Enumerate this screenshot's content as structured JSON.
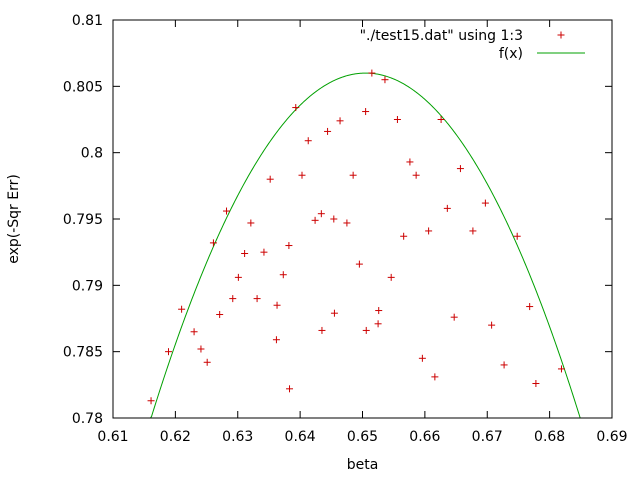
{
  "chart_data": {
    "type": "scatter",
    "title": "",
    "xlabel": "beta",
    "ylabel": "exp(-Sqr Err)",
    "xlim": [
      0.61,
      0.69
    ],
    "ylim": [
      0.78,
      0.81
    ],
    "xticks": [
      0.61,
      0.62,
      0.63,
      0.64,
      0.65,
      0.66,
      0.67,
      0.68,
      0.69
    ],
    "yticks": [
      0.78,
      0.785,
      0.79,
      0.795,
      0.8,
      0.805,
      0.81
    ],
    "xtick_labels": [
      "0.61",
      "0.62",
      "0.63",
      "0.64",
      "0.65",
      "0.66",
      "0.67",
      "0.68",
      "0.69"
    ],
    "ytick_labels": [
      "0.78",
      "0.785",
      "0.79",
      "0.795",
      "0.8",
      "0.805",
      "0.81"
    ],
    "grid": false,
    "legend_position": "top-right",
    "colors": {
      "points": "#cc0000",
      "curve": "#00a000",
      "frame": "#000000"
    },
    "series": [
      {
        "name": "\"./test15.dat\" using 1:3",
        "kind": "scatter",
        "marker": "+",
        "points": [
          [
            0.6161,
            0.7813
          ],
          [
            0.6189,
            0.785
          ],
          [
            0.621,
            0.7882
          ],
          [
            0.623,
            0.7865
          ],
          [
            0.6241,
            0.7852
          ],
          [
            0.6251,
            0.7842
          ],
          [
            0.6261,
            0.7932
          ],
          [
            0.6271,
            0.7878
          ],
          [
            0.6282,
            0.7956
          ],
          [
            0.6292,
            0.789
          ],
          [
            0.6301,
            0.7906
          ],
          [
            0.6311,
            0.7924
          ],
          [
            0.6321,
            0.7947
          ],
          [
            0.6331,
            0.789
          ],
          [
            0.6342,
            0.7925
          ],
          [
            0.6352,
            0.798
          ],
          [
            0.6362,
            0.7859
          ],
          [
            0.6363,
            0.7885
          ],
          [
            0.6373,
            0.7908
          ],
          [
            0.6382,
            0.793
          ],
          [
            0.6383,
            0.7822
          ],
          [
            0.6393,
            0.8034
          ],
          [
            0.6403,
            0.7983
          ],
          [
            0.6413,
            0.8009
          ],
          [
            0.6424,
            0.7949
          ],
          [
            0.6434,
            0.7954
          ],
          [
            0.6435,
            0.7866
          ],
          [
            0.6444,
            0.8016
          ],
          [
            0.6454,
            0.795
          ],
          [
            0.6455,
            0.7879
          ],
          [
            0.6464,
            0.8024
          ],
          [
            0.6475,
            0.7947
          ],
          [
            0.6485,
            0.7983
          ],
          [
            0.6495,
            0.7916
          ],
          [
            0.6505,
            0.8031
          ],
          [
            0.6506,
            0.7866
          ],
          [
            0.6515,
            0.806
          ],
          [
            0.6525,
            0.7871
          ],
          [
            0.6526,
            0.7881
          ],
          [
            0.6536,
            0.8055
          ],
          [
            0.6546,
            0.7906
          ],
          [
            0.6556,
            0.8025
          ],
          [
            0.6566,
            0.7937
          ],
          [
            0.6576,
            0.7993
          ],
          [
            0.6586,
            0.7983
          ],
          [
            0.6596,
            0.7845
          ],
          [
            0.6606,
            0.7941
          ],
          [
            0.6616,
            0.7831
          ],
          [
            0.6626,
            0.8025
          ],
          [
            0.6636,
            0.7958
          ],
          [
            0.6647,
            0.7876
          ],
          [
            0.6657,
            0.7988
          ],
          [
            0.6677,
            0.7941
          ],
          [
            0.6697,
            0.7962
          ],
          [
            0.6707,
            0.787
          ],
          [
            0.6727,
            0.784
          ],
          [
            0.6748,
            0.7937
          ],
          [
            0.6768,
            0.7884
          ],
          [
            0.6778,
            0.7826
          ],
          [
            0.6819,
            0.7837
          ]
        ]
      },
      {
        "name": "f(x)",
        "kind": "line",
        "vertex": [
          0.6505,
          0.806
        ],
        "roots": [
          0.6155,
          0.6849
        ]
      }
    ]
  }
}
